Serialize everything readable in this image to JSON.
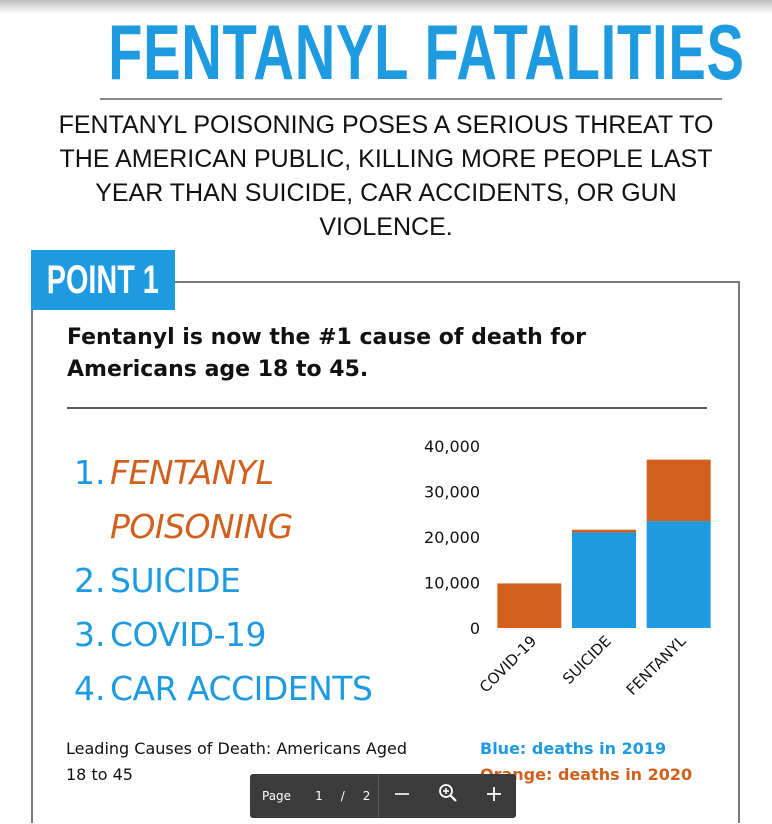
{
  "title": "FENTANYL FATALITIES",
  "intro": "FENTANYL POISONING POSES A SERIOUS THREAT TO THE AMERICAN PUBLIC, KILLING MORE PEOPLE LAST YEAR THAN SUICIDE, CAR ACCIDENTS, OR GUN VIOLENCE.",
  "point_tab": "POINT 1",
  "headline": "Fentanyl is now the #1 cause of death for Americans age 18 to 45.",
  "ranking": [
    {
      "num": "1.",
      "label": "FENTANYL POISONING"
    },
    {
      "num": "2.",
      "label": "SUICIDE"
    },
    {
      "num": "3.",
      "label": "COVID-19"
    },
    {
      "num": "4.",
      "label": "CAR ACCIDENTS"
    }
  ],
  "caption": "Leading Causes of Death: Americans Aged 18 to 45",
  "legend": {
    "blue": "Blue: deaths in 2019",
    "orange": "Orange: deaths in 2020"
  },
  "colors": {
    "blue": "#1e9be0",
    "orange": "#d1601c"
  },
  "chart_data": {
    "type": "bar",
    "stacked": true,
    "categories": [
      "COVID-19",
      "SUICIDE",
      "FENTANYL"
    ],
    "series": [
      {
        "name": "Blue: deaths in 2019",
        "color": "#1e9be0",
        "values": [
          0,
          21000,
          23500
        ]
      },
      {
        "name": "Orange: deaths in 2020",
        "color": "#d1601c",
        "values": [
          9800,
          600,
          13500
        ]
      }
    ],
    "ylim": [
      0,
      40000
    ],
    "yticks": [
      "0",
      "10,000",
      "20,000",
      "30,000",
      "40,000"
    ],
    "ytick_values": [
      0,
      10000,
      20000,
      30000,
      40000
    ],
    "grid": false,
    "legend": "below"
  },
  "pager": {
    "label": "Page",
    "current": "1",
    "slash": "/",
    "total": "2",
    "zoom_out_icon": "minus-icon",
    "zoom_icon": "magnifier-plus-icon",
    "zoom_in_icon": "plus-icon"
  }
}
